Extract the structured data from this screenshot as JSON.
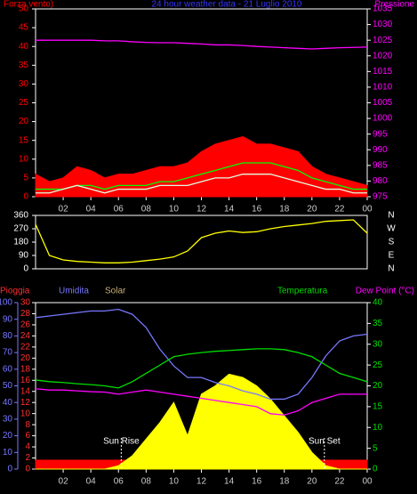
{
  "chart_data": [
    {
      "type": "line",
      "title": "24 hour weather data - 21 Luglio 2010",
      "ylabel": "Forza vento)",
      "y2label": "Pressione",
      "x": [
        0,
        1,
        2,
        3,
        4,
        5,
        6,
        7,
        8,
        9,
        10,
        11,
        12,
        13,
        14,
        15,
        16,
        17,
        18,
        19,
        20,
        21,
        22,
        23,
        24
      ],
      "xlim": [
        0,
        24
      ],
      "xticks": [
        {
          "value": 2,
          "label": "02"
        },
        {
          "value": 4,
          "label": "04"
        },
        {
          "value": 6,
          "label": "06"
        },
        {
          "value": 8,
          "label": "08"
        },
        10,
        12,
        14,
        16,
        18,
        20,
        22,
        {
          "value": 24,
          "label": "00"
        }
      ],
      "ylim": [
        0,
        50
      ],
      "yticks": [
        0,
        5,
        10,
        15,
        20,
        25,
        30,
        35,
        40,
        45,
        50
      ],
      "y2lim": [
        975,
        1035
      ],
      "y2ticks": [
        975,
        980,
        985,
        990,
        995,
        1000,
        1005,
        1010,
        1015,
        1020,
        1025,
        1030,
        1035
      ],
      "series": [
        {
          "color": "#ff0000",
          "area": true,
          "values": [
            6,
            4,
            5,
            8,
            7,
            5,
            6,
            6,
            7,
            8,
            8,
            9,
            12,
            14,
            15,
            16,
            14,
            14,
            13,
            12,
            8,
            6,
            5,
            4,
            3
          ]
        },
        {
          "color": "#00ff00",
          "values": [
            2,
            2,
            2,
            3,
            3,
            2,
            3,
            3,
            3,
            4,
            4,
            5,
            6,
            7,
            8,
            9,
            9,
            9,
            8,
            7,
            5,
            4,
            3,
            2,
            2
          ]
        },
        {
          "color": "#e0ffe0",
          "values": [
            1,
            1,
            2,
            3,
            2,
            1,
            2,
            2,
            2,
            3,
            3,
            3,
            4,
            5,
            5,
            6,
            6,
            6,
            5,
            4,
            3,
            2,
            2,
            1,
            1
          ]
        },
        {
          "color": "#ff00ff",
          "axis": "y2",
          "values": [
            1025,
            1025,
            1025,
            1025,
            1025,
            1024.8,
            1024.8,
            1024.5,
            1024.3,
            1024.2,
            1024.2,
            1024,
            1023.8,
            1023.5,
            1023.5,
            1023.3,
            1023,
            1022.8,
            1022.6,
            1022.4,
            1022.2,
            1022.4,
            1022.6,
            1022.7,
            1022.8
          ]
        }
      ]
    },
    {
      "type": "line",
      "direction_labels": [
        "N",
        "W",
        "S",
        "E",
        "N"
      ],
      "x": [
        0,
        1,
        2,
        3,
        4,
        5,
        6,
        7,
        8,
        9,
        10,
        11,
        12,
        13,
        14,
        15,
        16,
        17,
        18,
        19,
        20,
        21,
        22,
        23,
        24
      ],
      "xlim": [
        0,
        24
      ],
      "ylim": [
        0,
        360
      ],
      "yticks": [
        0,
        90,
        180,
        270,
        360
      ],
      "series": [
        {
          "color": "#ffff00",
          "values": [
            300,
            90,
            60,
            50,
            45,
            40,
            40,
            45,
            55,
            65,
            80,
            120,
            210,
            240,
            255,
            245,
            250,
            270,
            285,
            295,
            305,
            320,
            325,
            330,
            240
          ]
        }
      ]
    },
    {
      "type": "line",
      "ylabel": "Pioggia",
      "y3label": "Umidita",
      "solar_label": "Solar",
      "y2label": "Temperatura",
      "dew_label": "Dew Point (°C)",
      "x": [
        0,
        1,
        2,
        3,
        4,
        5,
        6,
        7,
        8,
        9,
        10,
        11,
        12,
        13,
        14,
        15,
        16,
        17,
        18,
        19,
        20,
        21,
        22,
        23,
        24
      ],
      "xlim": [
        0,
        24
      ],
      "xticks": [
        {
          "value": 2,
          "label": "02"
        },
        {
          "value": 4,
          "label": "04"
        },
        {
          "value": 6,
          "label": "06"
        },
        {
          "value": 8,
          "label": "08"
        },
        10,
        12,
        14,
        16,
        18,
        20,
        22,
        {
          "value": 24,
          "label": "00"
        }
      ],
      "ylim": [
        0,
        30
      ],
      "yticks": [
        0,
        2,
        4,
        6,
        8,
        10,
        12,
        14,
        16,
        18,
        20,
        22,
        24,
        26,
        28,
        30
      ],
      "y3lim": [
        0,
        100
      ],
      "y3ticks": [
        0,
        10,
        20,
        30,
        40,
        50,
        60,
        70,
        80,
        90,
        100
      ],
      "y2lim": [
        0,
        40
      ],
      "y2ticks": [
        0,
        5,
        10,
        15,
        20,
        25,
        30,
        35,
        40
      ],
      "series": [
        {
          "color": "#ff0000",
          "area": true,
          "values": [
            1.6,
            1.6,
            1.6,
            1.6,
            1.6,
            1.6,
            1.6,
            1.6,
            1.6,
            1.6,
            1.6,
            1.6,
            1.6,
            1.6,
            1.6,
            1.6,
            1.6,
            1.6,
            1.6,
            1.6,
            1.6,
            1.6,
            1.6,
            1.6,
            1.6
          ]
        },
        {
          "color": "#ffff00",
          "area": true,
          "axis": "y3",
          "values": [
            0,
            0,
            0,
            0,
            0,
            0,
            2,
            8,
            18,
            28,
            40,
            20,
            45,
            50,
            57,
            55,
            50,
            42,
            32,
            22,
            10,
            2,
            0,
            0,
            0
          ]
        },
        {
          "color": "#7777ff",
          "axis": "y3",
          "values": [
            91,
            92,
            93,
            94,
            95,
            95,
            96,
            93,
            85,
            72,
            62,
            55,
            55,
            52,
            50,
            47,
            45,
            42,
            42,
            45,
            55,
            68,
            77,
            80,
            81
          ]
        },
        {
          "color": "#00dd00",
          "axis": "y2",
          "values": [
            21.4,
            21,
            20.8,
            20.5,
            20.3,
            20,
            19.5,
            21,
            23,
            25,
            27,
            27.6,
            28,
            28.3,
            28.5,
            28.7,
            28.9,
            28.9,
            28.7,
            28,
            27,
            25,
            23,
            22,
            21
          ]
        },
        {
          "color": "#ff00ff",
          "axis": "y2",
          "values": [
            19.3,
            19,
            19,
            18.8,
            18.6,
            18.5,
            18,
            18.5,
            19,
            18.5,
            18,
            17.5,
            17,
            16.5,
            16,
            15.5,
            15,
            13.3,
            13,
            14,
            16,
            17,
            18,
            18,
            18
          ]
        }
      ],
      "annotations": [
        {
          "text": "Sun Rise",
          "x": 6.2
        },
        {
          "text": "Sun Set",
          "x": 20.9
        }
      ]
    }
  ]
}
